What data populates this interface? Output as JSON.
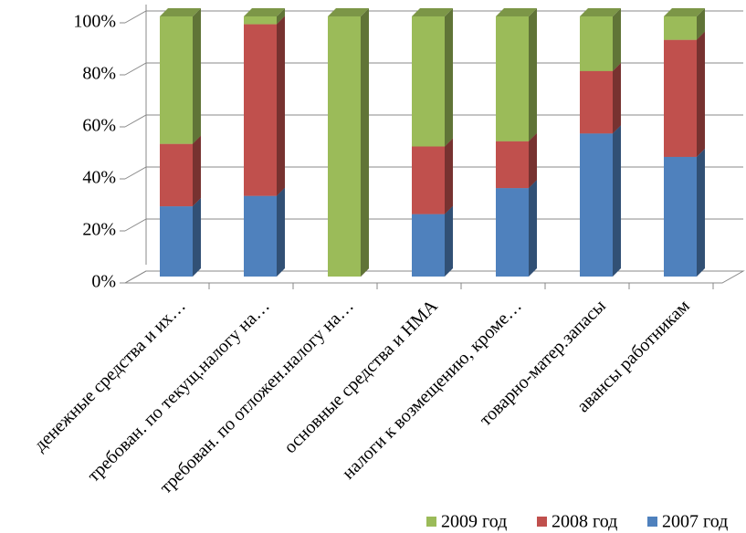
{
  "chart_data": {
    "type": "stacked_bar_3d",
    "categories": [
      "денежные средства и их…",
      "требован. по текущ.налогу на…",
      "требован. по отложен.налогу на…",
      "основные средства и НМА",
      "налоги к возмещению, кроме…",
      "товарно-матер.запасы",
      "авансы работникам"
    ],
    "series": [
      {
        "name": "2007 год",
        "color": "#4f81bd",
        "values": [
          27,
          31,
          0,
          24,
          34,
          55,
          46
        ]
      },
      {
        "name": "2008 год",
        "color": "#c0504d",
        "values": [
          24,
          66,
          0,
          26,
          18,
          24,
          45
        ]
      },
      {
        "name": "2009 год",
        "color": "#9bbb59",
        "values": [
          49,
          3,
          100,
          50,
          48,
          21,
          9
        ]
      }
    ],
    "ylim": [
      0,
      100
    ],
    "yticks": [
      {
        "value": 0,
        "label": "0%"
      },
      {
        "value": 20,
        "label": "20%"
      },
      {
        "value": 40,
        "label": "40%"
      },
      {
        "value": 60,
        "label": "60%"
      },
      {
        "value": 80,
        "label": "80%"
      },
      {
        "value": 100,
        "label": "100%"
      }
    ],
    "grid": true,
    "legend": "bottom-right"
  }
}
